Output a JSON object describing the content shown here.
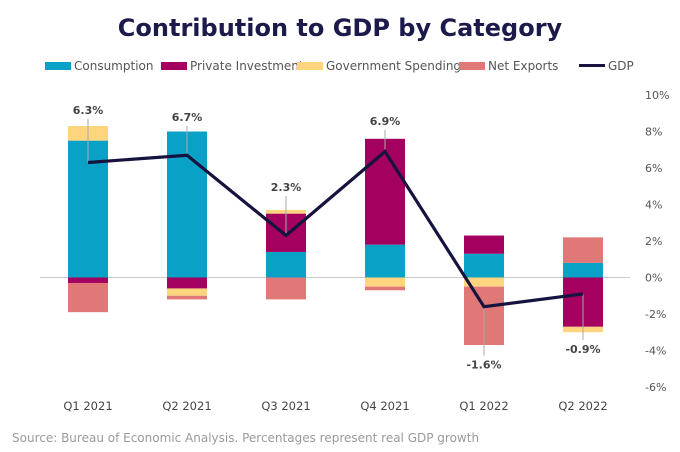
{
  "chart_data": {
    "type": "bar",
    "stacked": true,
    "title": "Contribution to GDP by Category",
    "categories": [
      "Q1 2021",
      "Q2 2021",
      "Q3 2021",
      "Q4 2021",
      "Q1 2022",
      "Q2 2022"
    ],
    "series": [
      {
        "name": "Consumption",
        "type": "bar",
        "color": "#0aa1c7",
        "values": [
          7.5,
          8.0,
          1.4,
          1.8,
          1.3,
          0.8
        ]
      },
      {
        "name": "Private Investment",
        "type": "bar",
        "color": "#a3005f",
        "values": [
          -0.3,
          -0.6,
          2.1,
          5.8,
          1.0,
          -2.7
        ]
      },
      {
        "name": "Government Spending",
        "type": "bar",
        "color": "#fdd57e",
        "values": [
          0.8,
          -0.4,
          0.2,
          -0.5,
          -0.5,
          -0.3
        ]
      },
      {
        "name": "Net Exports",
        "type": "bar",
        "color": "#df7877",
        "values": [
          -1.6,
          -0.2,
          -1.2,
          -0.2,
          -3.2,
          1.4
        ]
      },
      {
        "name": "GDP",
        "type": "line",
        "color": "#16133f",
        "values": [
          6.3,
          6.7,
          2.3,
          6.9,
          -1.6,
          -0.9
        ]
      }
    ],
    "data_labels": [
      "6.3%",
      "6.7%",
      "2.3%",
      "6.9%",
      "-1.6%",
      "-0.9%"
    ],
    "y_ticks": [
      10,
      8,
      6,
      4,
      2,
      0,
      -2,
      -4,
      -6
    ],
    "y_tick_labels": [
      "10%",
      "8%",
      "6%",
      "4%",
      "2%",
      "0%",
      "-2%",
      "-4%",
      "-6%"
    ],
    "ylim": [
      -6,
      10
    ],
    "xlabel": "",
    "ylabel": "",
    "y_axis_side": "right",
    "grid": false,
    "legend": "top",
    "source": "Source: Bureau of Economic Analysis. Percentages represent real GDP growth"
  }
}
